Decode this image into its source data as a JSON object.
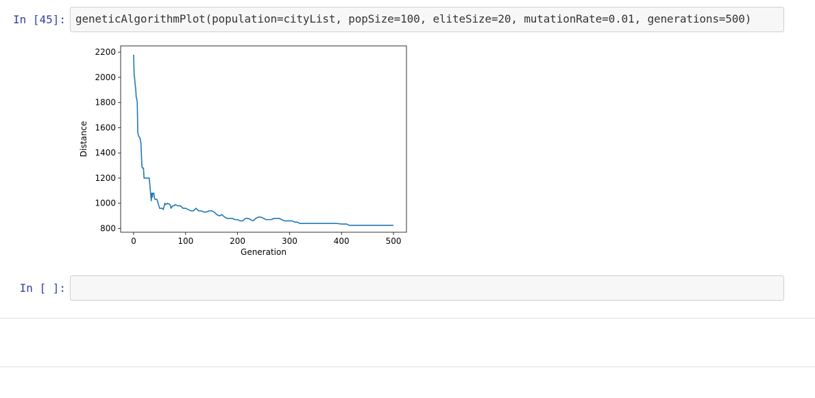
{
  "cells": [
    {
      "prompt": "In [45]:",
      "code": "geneticAlgorithmPlot(population=cityList, popSize=100, eliteSize=20, mutationRate=0.01, generations=500)"
    },
    {
      "prompt": "In [ ]:",
      "code": ""
    }
  ],
  "chart_data": {
    "type": "line",
    "xlabel": "Generation",
    "ylabel": "Distance",
    "xlim": [
      -25,
      525
    ],
    "ylim": [
      770,
      2250
    ],
    "xticks": [
      0,
      100,
      200,
      300,
      400,
      500
    ],
    "yticks": [
      800,
      1000,
      1200,
      1400,
      1600,
      1800,
      2000,
      2200
    ],
    "grid": false,
    "color": "#1f77b4",
    "x": [
      0,
      1,
      2,
      3,
      4,
      5,
      6,
      7,
      8,
      10,
      12,
      14,
      16,
      17,
      19,
      20,
      22,
      24,
      30,
      34,
      35,
      36,
      37,
      38,
      39,
      40,
      42,
      45,
      50,
      55,
      57,
      60,
      62,
      65,
      70,
      72,
      75,
      78,
      80,
      85,
      90,
      95,
      100,
      105,
      110,
      115,
      120,
      125,
      130,
      135,
      140,
      145,
      150,
      155,
      160,
      165,
      170,
      175,
      180,
      185,
      190,
      195,
      200,
      205,
      210,
      215,
      220,
      225,
      230,
      235,
      240,
      245,
      250,
      255,
      260,
      265,
      270,
      275,
      280,
      285,
      290,
      295,
      300,
      305,
      310,
      315,
      320,
      330,
      340,
      350,
      360,
      370,
      380,
      390,
      400,
      410,
      415,
      420,
      430,
      440,
      450,
      460,
      470,
      480,
      490,
      500
    ],
    "values": [
      2180,
      2020,
      1990,
      1940,
      1910,
      1840,
      1830,
      1800,
      1560,
      1530,
      1520,
      1480,
      1290,
      1280,
      1280,
      1200,
      1200,
      1200,
      1200,
      1020,
      1080,
      1050,
      1080,
      1080,
      1080,
      1040,
      1030,
      1030,
      960,
      960,
      950,
      1000,
      990,
      1000,
      990,
      960,
      980,
      980,
      990,
      980,
      980,
      960,
      960,
      950,
      940,
      940,
      960,
      940,
      940,
      930,
      930,
      940,
      940,
      930,
      910,
      900,
      910,
      890,
      880,
      880,
      880,
      870,
      870,
      860,
      860,
      880,
      880,
      870,
      860,
      880,
      890,
      890,
      880,
      870,
      870,
      870,
      880,
      880,
      880,
      870,
      860,
      860,
      860,
      860,
      850,
      850,
      840,
      840,
      840,
      840,
      840,
      840,
      840,
      840,
      835,
      835,
      825,
      825,
      825,
      825,
      825,
      825,
      825,
      825,
      825,
      825
    ]
  }
}
